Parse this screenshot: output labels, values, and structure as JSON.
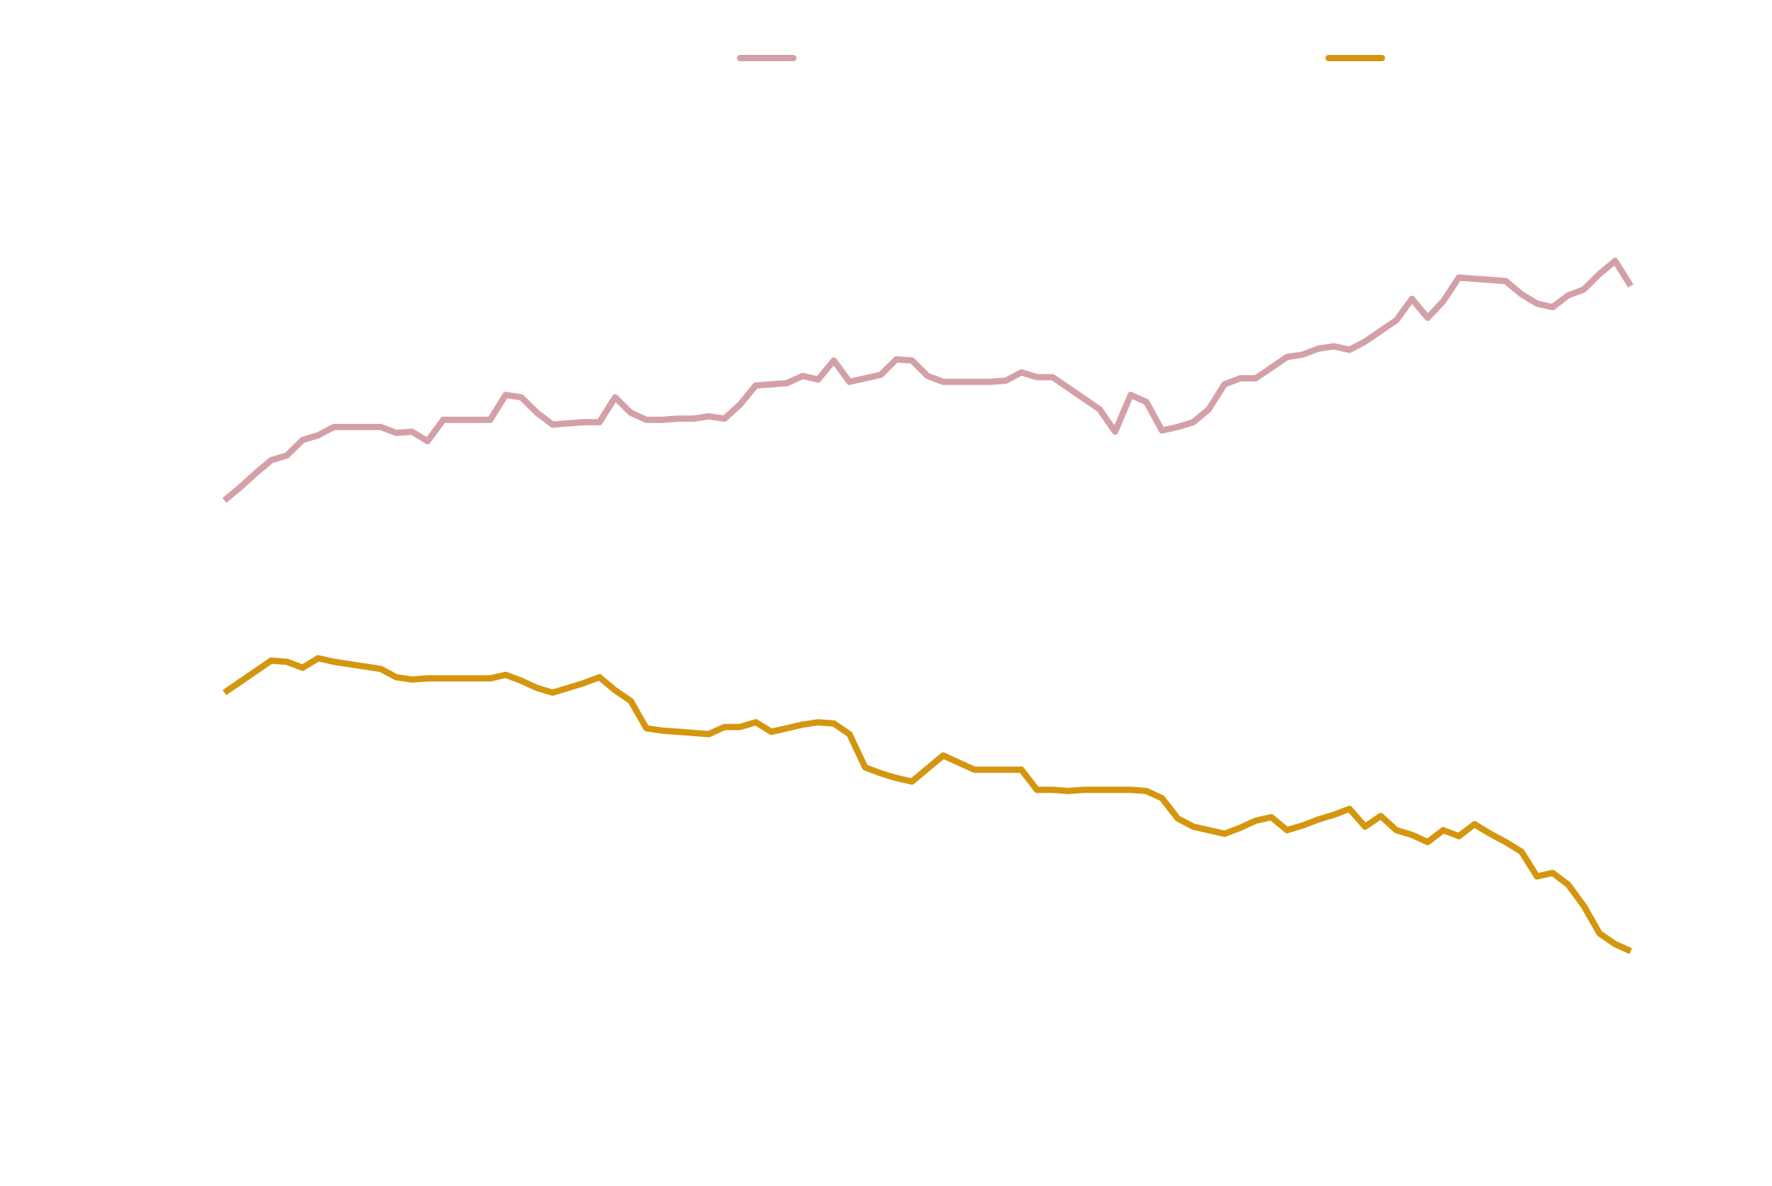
{
  "chart_data": {
    "type": "line",
    "title": "",
    "xlabel": "",
    "ylabel": "",
    "grid": false,
    "legend_position": "top",
    "x": [
      0,
      1,
      2,
      3,
      4,
      5,
      6,
      7,
      8,
      9,
      10,
      11,
      12,
      13,
      14,
      15,
      16,
      17,
      18,
      19,
      20,
      21,
      22,
      23,
      24,
      25,
      26,
      27,
      28,
      29,
      30,
      31,
      32,
      33,
      34,
      35,
      36,
      37,
      38,
      39,
      40,
      41,
      42,
      43,
      44,
      45,
      46,
      47,
      48,
      49,
      50,
      51,
      52,
      53,
      54,
      55,
      56,
      57,
      58,
      59,
      60,
      61,
      62,
      63,
      64,
      65,
      66,
      67,
      68,
      69,
      70,
      71,
      72,
      73,
      74,
      75,
      76,
      77,
      78,
      79,
      80,
      81,
      82,
      83,
      84,
      85,
      86,
      87,
      88,
      89,
      90
    ],
    "xlim": [
      0,
      90
    ],
    "ylim": [
      0,
      100
    ],
    "series": [
      {
        "name": "",
        "color": "#d4a0a7",
        "values": [
          57.8,
          58.9,
          60.1,
          61.2,
          61.6,
          62.9,
          63.3,
          64.0,
          64.0,
          64.0,
          64.0,
          63.5,
          63.6,
          62.8,
          64.6,
          64.6,
          64.6,
          64.6,
          66.7,
          66.5,
          65.2,
          64.2,
          64.3,
          64.4,
          64.4,
          66.5,
          65.2,
          64.6,
          64.6,
          64.7,
          64.7,
          64.9,
          64.7,
          65.9,
          67.5,
          67.6,
          67.7,
          68.3,
          68.0,
          69.6,
          67.8,
          68.1,
          68.4,
          69.7,
          69.6,
          68.3,
          67.8,
          67.8,
          67.8,
          67.8,
          67.9,
          68.6,
          68.2,
          68.2,
          67.3,
          66.4,
          65.5,
          63.6,
          66.7,
          66.1,
          63.7,
          64.0,
          64.4,
          65.5,
          67.6,
          68.1,
          68.1,
          69.0,
          69.9,
          70.1,
          70.6,
          70.8,
          70.5,
          71.2,
          72.1,
          73.0,
          74.8,
          73.2,
          74.6,
          76.6,
          76.5,
          76.4,
          76.3,
          75.2,
          74.4,
          74.1,
          75.1,
          75.6,
          76.9,
          78.0,
          75.9
        ],
        "label": ""
      },
      {
        "name": "",
        "color": "#d4960f",
        "values": [
          41.6,
          42.5,
          43.4,
          44.3,
          44.2,
          43.7,
          44.5,
          44.2,
          44.0,
          43.8,
          43.6,
          42.9,
          42.7,
          42.8,
          42.8,
          42.8,
          42.8,
          42.8,
          43.1,
          42.6,
          42.0,
          41.6,
          42.0,
          42.4,
          42.9,
          41.8,
          40.9,
          38.6,
          38.4,
          38.3,
          38.2,
          38.1,
          38.7,
          38.7,
          39.1,
          38.3,
          38.6,
          38.9,
          39.1,
          39.0,
          38.1,
          35.3,
          34.8,
          34.4,
          34.1,
          35.2,
          36.3,
          35.7,
          35.1,
          35.1,
          35.1,
          35.1,
          33.4,
          33.4,
          33.3,
          33.4,
          33.4,
          33.4,
          33.4,
          33.3,
          32.7,
          31.0,
          30.3,
          30.0,
          29.7,
          30.2,
          30.8,
          31.1,
          30.0,
          30.4,
          30.9,
          31.3,
          31.8,
          30.3,
          31.2,
          30.0,
          29.6,
          29.0,
          30.0,
          29.5,
          30.5,
          29.7,
          29.0,
          28.2,
          26.1,
          26.4,
          25.4,
          23.6,
          21.3,
          20.4,
          19.8
        ],
        "label": ""
      }
    ]
  }
}
